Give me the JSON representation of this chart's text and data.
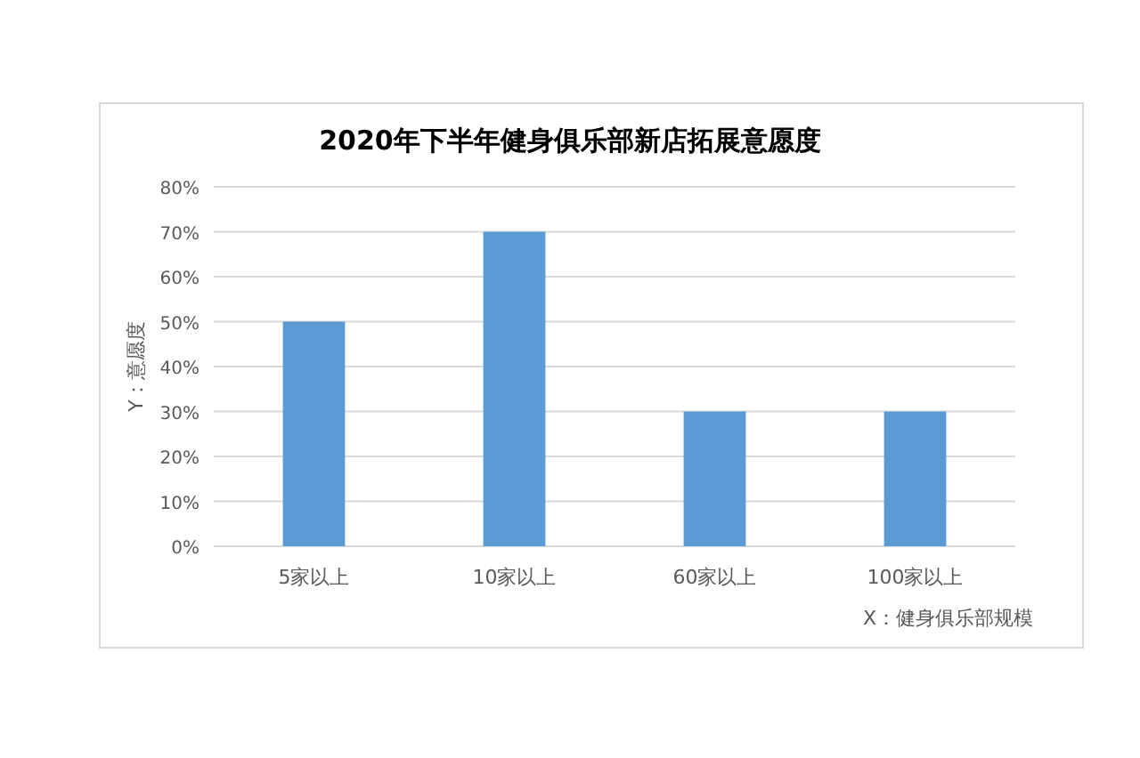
{
  "chart_data": {
    "type": "bar",
    "title": "2020年下半年健身俱乐部新店拓展意愿度",
    "xlabel": "X：健身俱乐部规模",
    "ylabel": "Y：意愿度",
    "categories": [
      "5家以上",
      "10家以上",
      "60家以上",
      "100家以上"
    ],
    "values": [
      50,
      70,
      30,
      30
    ],
    "color": "#5b9bd5",
    "ylim": [
      0,
      80
    ],
    "yticks": [
      {
        "value": 0,
        "label": "0%"
      },
      {
        "value": 10,
        "label": "10%"
      },
      {
        "value": 20,
        "label": "20%"
      },
      {
        "value": 30,
        "label": "30%"
      },
      {
        "value": 40,
        "label": "40%"
      },
      {
        "value": 50,
        "label": "50%"
      },
      {
        "value": 60,
        "label": "60%"
      },
      {
        "value": 70,
        "label": "70%"
      },
      {
        "value": 80,
        "label": "80%"
      }
    ],
    "grid": "y"
  }
}
